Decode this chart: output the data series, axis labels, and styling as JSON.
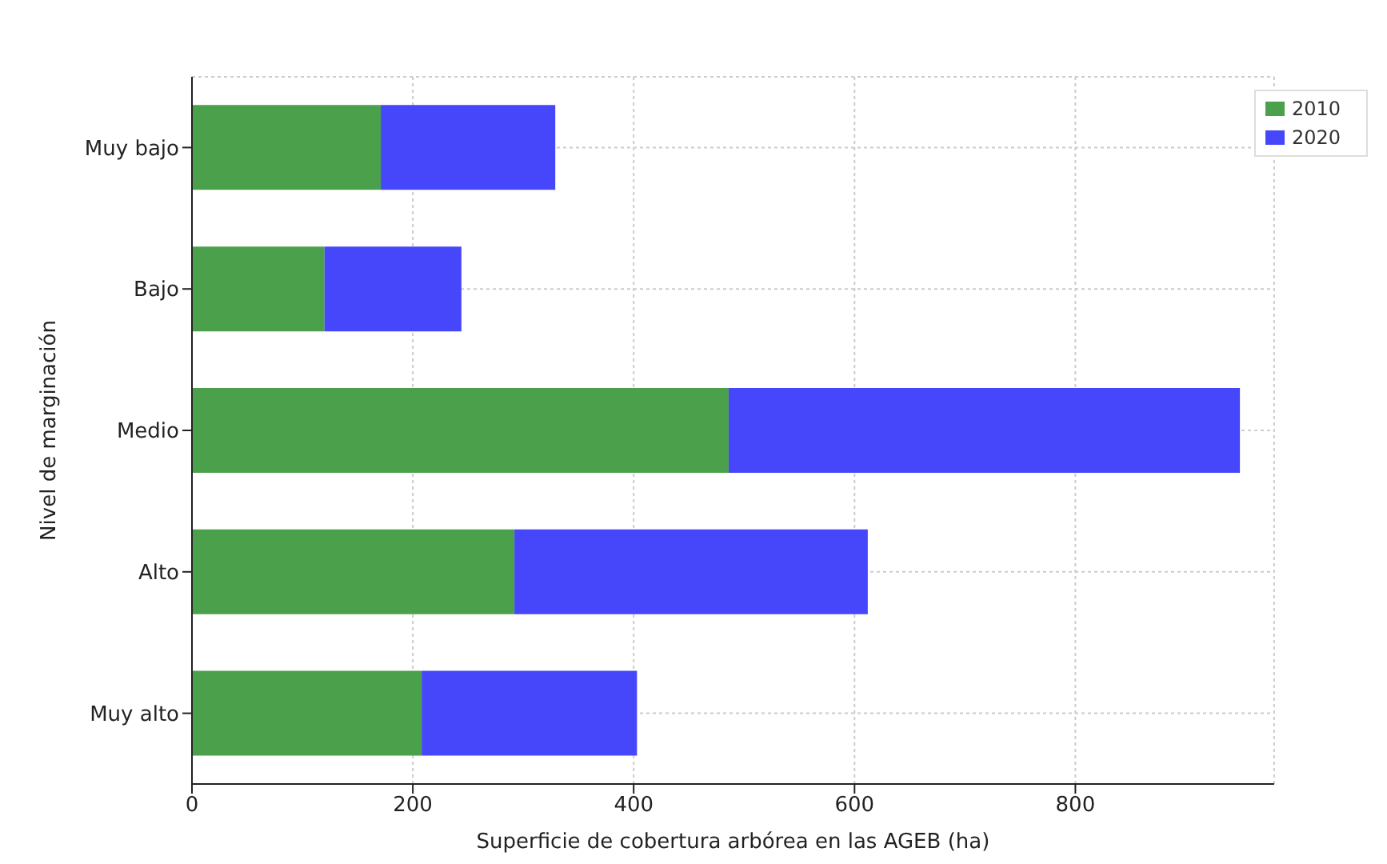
{
  "chart_data": {
    "type": "bar",
    "orientation": "horizontal",
    "stacked": true,
    "categories": [
      "Muy bajo",
      "Bajo",
      "Medio",
      "Alto",
      "Muy alto"
    ],
    "series": [
      {
        "name": "2010",
        "color": "#4ba04b",
        "values": [
          171,
          120,
          486,
          292,
          208
        ]
      },
      {
        "name": "2020",
        "color": "#4646fa",
        "values": [
          158,
          124,
          463,
          320,
          195
        ]
      }
    ],
    "xlabel": "Superficie de cobertura arbórea en las AGEB (ha)",
    "ylabel": "Nivel de marginación",
    "xlim": [
      0,
      980
    ],
    "xticks": [
      0,
      200,
      400,
      600,
      800
    ],
    "grid": true,
    "legend": "top right"
  }
}
